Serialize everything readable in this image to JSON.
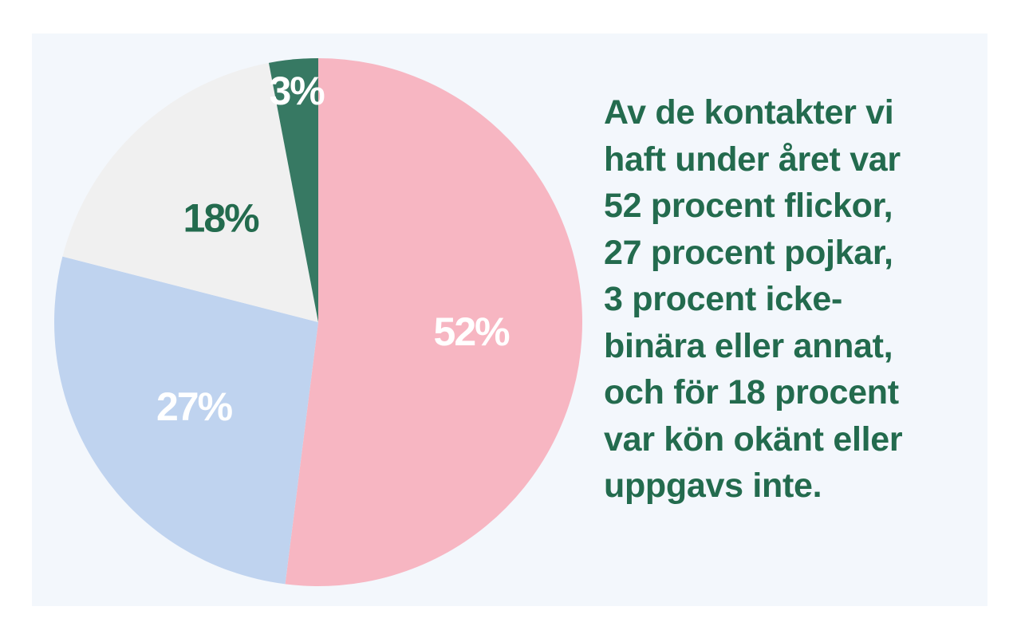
{
  "chart_data": {
    "type": "pie",
    "slices": [
      {
        "label": "52%",
        "value": 52,
        "color": "#f7b6c2",
        "label_color": "#ffffff"
      },
      {
        "label": "27%",
        "value": 27,
        "color": "#bfd3ef",
        "label_color": "#ffffff"
      },
      {
        "label": "18%",
        "value": 18,
        "color": "#f0f0f0",
        "label_color": "#236b4e"
      },
      {
        "label": "3%",
        "value": 3,
        "color": "#377963",
        "label_color": "#ffffff"
      }
    ],
    "start": "12 o'clock",
    "direction": "clockwise"
  },
  "caption": {
    "lines": [
      "Av de kontakter vi",
      "haft under året var",
      "52 procent flickor,",
      "27 procent pojkar,",
      "3 procent icke-",
      "binära eller annat,",
      "och för 18 procent",
      "var kön okänt eller",
      "uppgavs inte."
    ],
    "color": "#236b4e"
  },
  "background": "#f3f7fc"
}
